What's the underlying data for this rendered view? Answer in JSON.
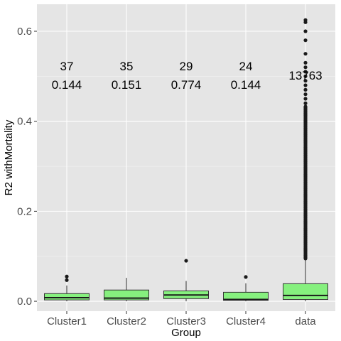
{
  "chart_data": {
    "type": "box",
    "xlabel": "Group",
    "ylabel": "R2 withMortality",
    "ylim": [
      -0.022,
      0.66
    ],
    "y_ticks": [
      0.0,
      0.2,
      0.4,
      0.6
    ],
    "y_tick_labels": [
      "0.0",
      "0.2",
      "0.4",
      "0.6"
    ],
    "categories": [
      "Cluster1",
      "Cluster2",
      "Cluster3",
      "Cluster4",
      "data"
    ],
    "box_color": "#86f07e",
    "panel_background": "#e5e5e5",
    "grid": true,
    "boxes": [
      {
        "category": "Cluster1",
        "q1": 0.003,
        "median": 0.008,
        "q3": 0.017,
        "whisker_low": 0.0,
        "whisker_high": 0.035,
        "outliers": [
          0.047,
          0.055
        ]
      },
      {
        "category": "Cluster2",
        "q1": 0.003,
        "median": 0.007,
        "q3": 0.025,
        "whisker_low": 0.0,
        "whisker_high": 0.052,
        "outliers": []
      },
      {
        "category": "Cluster3",
        "q1": 0.006,
        "median": 0.014,
        "q3": 0.023,
        "whisker_low": 0.0,
        "whisker_high": 0.045,
        "outliers": [
          0.09
        ]
      },
      {
        "category": "Cluster4",
        "q1": 0.002,
        "median": 0.004,
        "q3": 0.02,
        "whisker_low": 0.0,
        "whisker_high": 0.04,
        "outliers": [
          0.054
        ]
      },
      {
        "category": "data",
        "q1": 0.004,
        "median": 0.013,
        "q3": 0.039,
        "whisker_low": 0.0,
        "whisker_high": 0.092,
        "outlier_range": [
          0.095,
          0.435
        ],
        "outliers": [
          0.44,
          0.45,
          0.46,
          0.47,
          0.48,
          0.49,
          0.5,
          0.51,
          0.52,
          0.53,
          0.55,
          0.58,
          0.6,
          0.62,
          0.625
        ]
      }
    ],
    "annotations": [
      {
        "category": "Cluster1",
        "count": "37",
        "value": "0.144"
      },
      {
        "category": "Cluster2",
        "count": "35",
        "value": "0.151"
      },
      {
        "category": "Cluster3",
        "count": "29",
        "value": "0.774"
      },
      {
        "category": "Cluster4",
        "count": "24",
        "value": "0.144"
      },
      {
        "category": "data",
        "count": "13763",
        "value": ""
      }
    ]
  }
}
